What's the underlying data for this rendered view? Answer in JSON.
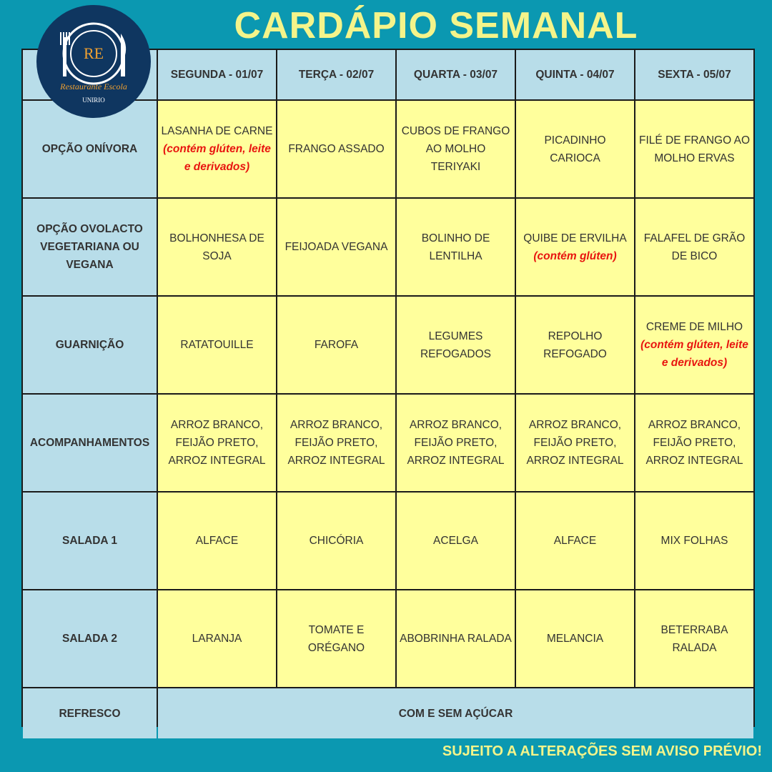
{
  "title": "CARDÁPIO SEMANAL",
  "logo": {
    "initials": "RE",
    "name": "Restaurante Escola",
    "org": "UNIRIO"
  },
  "days": [
    "SEGUNDA - 01/07",
    "TERÇA - 02/07",
    "QUARTA - 03/07",
    "QUINTA - 04/07",
    "SEXTA - 05/07"
  ],
  "rows": [
    {
      "label": "OPÇÃO ONÍVORA",
      "cells": [
        {
          "text": "LASANHA DE CARNE",
          "note": "(contém glúten, leite e derivados)"
        },
        {
          "text": "FRANGO ASSADO"
        },
        {
          "text": "CUBOS DE FRANGO AO MOLHO TERIYAKI"
        },
        {
          "text": "PICADINHO CARIOCA"
        },
        {
          "text": "FILÉ DE FRANGO AO MOLHO ERVAS"
        }
      ]
    },
    {
      "label": "OPÇÃO OVOLACTO VEGETARIANA OU VEGANA",
      "cells": [
        {
          "text": "BOLHONHESA DE SOJA"
        },
        {
          "text": "FEIJOADA VEGANA"
        },
        {
          "text": "BOLINHO DE LENTILHA"
        },
        {
          "text": "QUIBE DE ERVILHA",
          "note": "(contém glúten)"
        },
        {
          "text": "FALAFEL DE GRÃO DE BICO"
        }
      ]
    },
    {
      "label": "GUARNIÇÃO",
      "cells": [
        {
          "text": "RATATOUILLE"
        },
        {
          "text": "FAROFA"
        },
        {
          "text": "LEGUMES REFOGADOS"
        },
        {
          "text": "REPOLHO REFOGADO"
        },
        {
          "text": "CREME DE MILHO",
          "note": "(contém glúten, leite e derivados)"
        }
      ]
    },
    {
      "label": "ACOMPANHAMENTOS",
      "cells": [
        {
          "text": "ARROZ BRANCO, FEIJÃO PRETO, ARROZ INTEGRAL"
        },
        {
          "text": "ARROZ BRANCO, FEIJÃO PRETO, ARROZ INTEGRAL"
        },
        {
          "text": "ARROZ BRANCO, FEIJÃO PRETO, ARROZ INTEGRAL"
        },
        {
          "text": "ARROZ BRANCO, FEIJÃO PRETO, ARROZ INTEGRAL"
        },
        {
          "text": "ARROZ BRANCO, FEIJÃO PRETO, ARROZ INTEGRAL"
        }
      ]
    },
    {
      "label": "SALADA 1",
      "cells": [
        {
          "text": "ALFACE"
        },
        {
          "text": "CHICÓRIA"
        },
        {
          "text": "ACELGA"
        },
        {
          "text": "ALFACE"
        },
        {
          "text": "MIX FOLHAS"
        }
      ]
    },
    {
      "label": "SALADA 2",
      "cells": [
        {
          "text": "LARANJA"
        },
        {
          "text": "TOMATE E ORÉGANO"
        },
        {
          "text": "ABOBRINHA RALADA"
        },
        {
          "text": "MELANCIA"
        },
        {
          "text": "BETERRABA RALADA"
        }
      ]
    }
  ],
  "refresco": {
    "label": "REFRESCO",
    "text": "COM E SEM AÇÚCAR"
  },
  "footer": "SUJEITO A ALTERAÇÕES SEM AVISO PRÉVIO!",
  "colors": {
    "background": "#0b98b1",
    "title": "#f4f48a",
    "header": "#b8dde9",
    "cell": "#ffff9c",
    "note": "#e8140f"
  }
}
